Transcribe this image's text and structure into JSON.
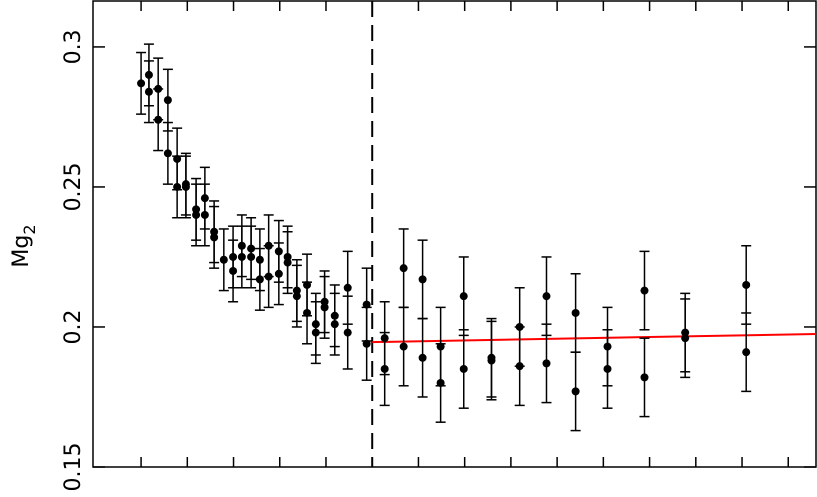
{
  "chart_data": {
    "type": "scatter",
    "ylabel": "Mg",
    "ylabel_subscript": "2",
    "xlim": [
      -1.04,
      14.6
    ],
    "ylim": [
      0.15,
      0.3164
    ],
    "xticks": [
      0,
      1,
      2,
      3,
      4,
      5,
      6,
      7,
      8,
      9,
      10,
      11,
      12,
      13,
      14
    ],
    "yticks": [
      0.15,
      0.2,
      0.25,
      0.3
    ],
    "color": "#000000",
    "vline": 5,
    "fit": {
      "color": "#ff0000",
      "x": [
        5,
        14.6
      ],
      "y": [
        0.1946,
        0.1975
      ]
    },
    "series": [
      {
        "x": [
          0,
          0.17,
          0.17,
          0.37,
          0.37,
          0.58,
          0.58,
          0.78,
          0.78,
          0.97,
          0.97,
          1.19,
          1.19,
          1.38,
          1.38,
          1.58,
          1.58,
          1.79,
          1.99,
          1.99,
          2.18,
          2.18,
          2.38,
          2.38,
          2.57,
          2.57,
          2.76,
          2.76,
          2.98,
          2.98,
          3.17,
          3.17,
          3.37,
          3.37,
          3.59,
          3.59,
          3.78,
          3.78,
          3.97,
          3.97,
          4.19,
          4.19,
          4.47,
          4.47,
          4.88,
          4.88,
          5.27,
          5.27,
          5.68,
          5.68,
          6.09,
          6.09,
          6.48,
          6.48,
          6.98,
          6.98,
          7.58,
          7.58,
          8.19,
          8.19,
          8.77,
          8.77,
          9.4,
          9.4,
          10.09,
          10.09,
          10.89,
          10.89,
          11.77,
          11.77,
          13.09,
          13.09
        ],
        "values": [
          0.287,
          0.29,
          0.284,
          0.285,
          0.274,
          0.281,
          0.262,
          0.26,
          0.25,
          0.251,
          0.25,
          0.242,
          0.24,
          0.246,
          0.24,
          0.234,
          0.232,
          0.224,
          0.225,
          0.22,
          0.229,
          0.225,
          0.228,
          0.225,
          0.224,
          0.217,
          0.229,
          0.218,
          0.227,
          0.219,
          0.225,
          0.223,
          0.213,
          0.211,
          0.215,
          0.205,
          0.201,
          0.198,
          0.209,
          0.207,
          0.204,
          0.201,
          0.214,
          0.198,
          0.208,
          0.194,
          0.196,
          0.185,
          0.221,
          0.193,
          0.217,
          0.189,
          0.193,
          0.18,
          0.211,
          0.185,
          0.189,
          0.188,
          0.2,
          0.186,
          0.211,
          0.187,
          0.205,
          0.177,
          0.193,
          0.185,
          0.213,
          0.182,
          0.198,
          0.196,
          0.215,
          0.191
        ],
        "errors": [
          0.011,
          0.011,
          0.011,
          0.011,
          0.011,
          0.011,
          0.011,
          0.011,
          0.011,
          0.011,
          0.011,
          0.011,
          0.011,
          0.011,
          0.011,
          0.011,
          0.011,
          0.011,
          0.011,
          0.011,
          0.011,
          0.011,
          0.011,
          0.011,
          0.011,
          0.011,
          0.011,
          0.011,
          0.011,
          0.011,
          0.011,
          0.011,
          0.011,
          0.011,
          0.011,
          0.011,
          0.011,
          0.011,
          0.011,
          0.011,
          0.011,
          0.011,
          0.013,
          0.013,
          0.013,
          0.013,
          0.013,
          0.013,
          0.014,
          0.014,
          0.014,
          0.014,
          0.014,
          0.014,
          0.014,
          0.014,
          0.014,
          0.014,
          0.014,
          0.014,
          0.014,
          0.014,
          0.014,
          0.014,
          0.014,
          0.014,
          0.014,
          0.014,
          0.014,
          0.014,
          0.014,
          0.014
        ]
      }
    ]
  }
}
